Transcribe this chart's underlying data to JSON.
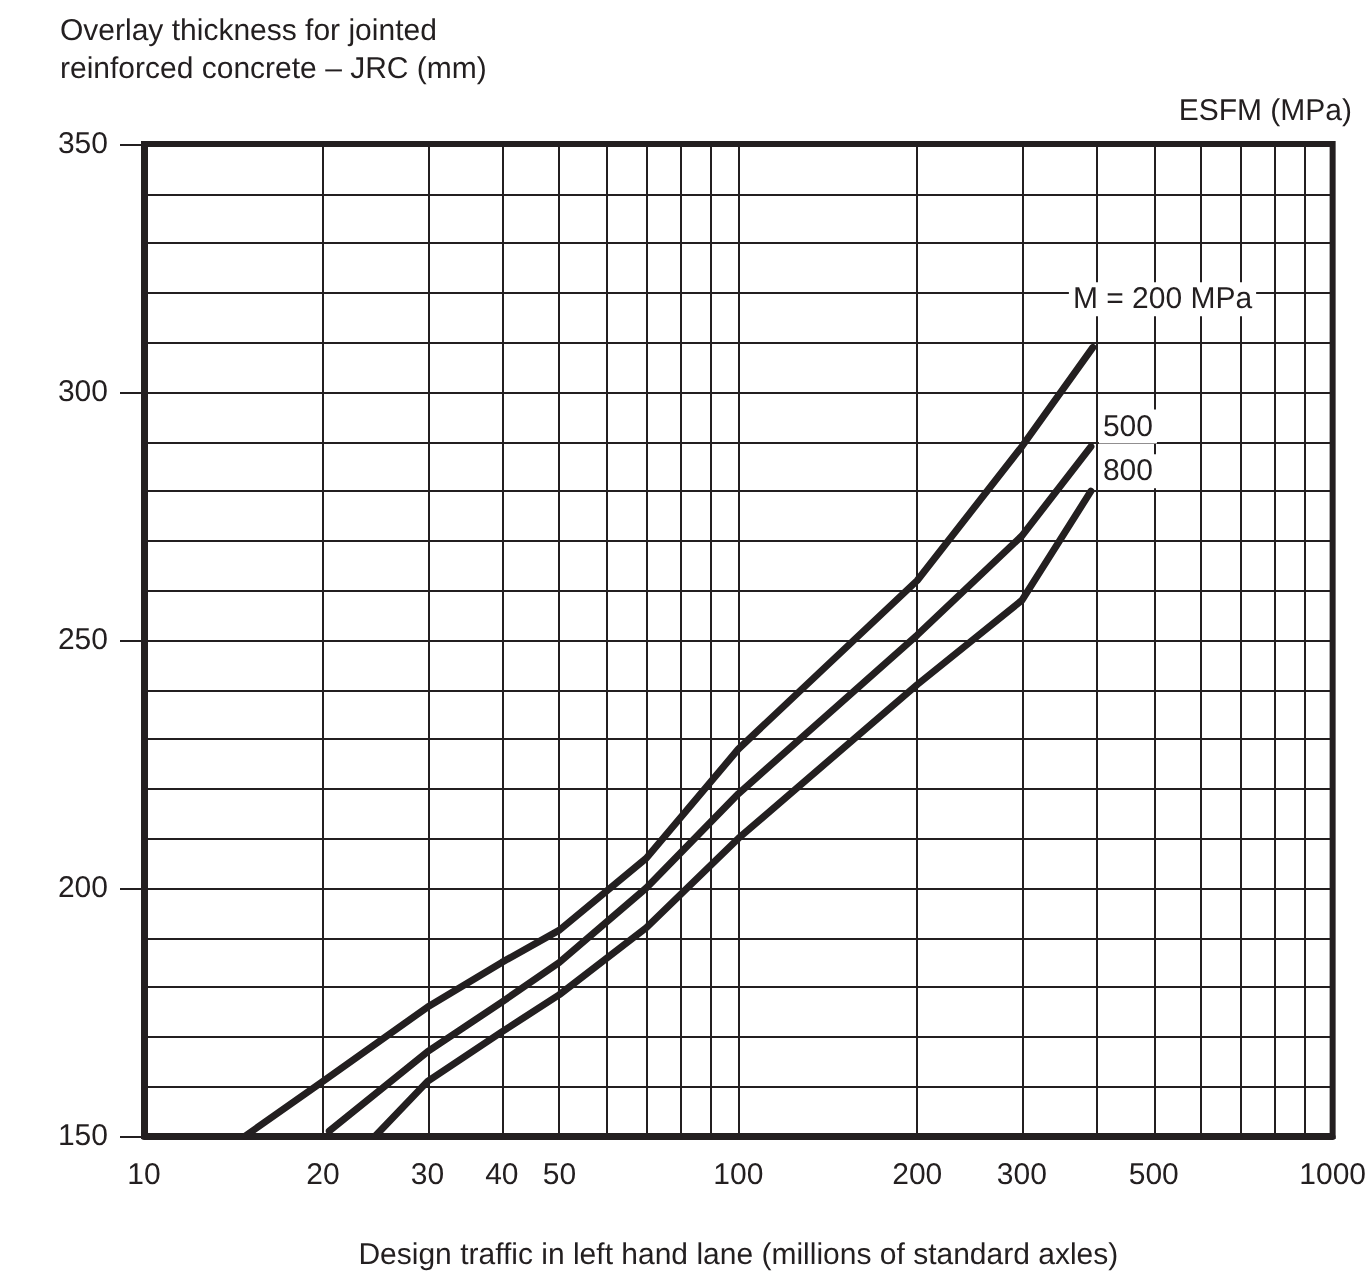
{
  "chart_data": {
    "type": "line",
    "ylabel": "Overlay thickness for jointed\nreinforced concrete – JRC (mm)",
    "xlabel": "Design traffic in left hand lane (millions of standard axles)",
    "annotations": [
      "ESFM (MPa)"
    ],
    "log": "x",
    "grid": true,
    "legend": false,
    "marker": "none",
    "line_style": "solid",
    "xlim": [
      10,
      1000
    ],
    "xticks": [
      10,
      20,
      30,
      40,
      50,
      {
        "value": 60,
        "label": null
      },
      {
        "value": 70,
        "label": null
      },
      {
        "value": 80,
        "label": null
      },
      {
        "value": 90,
        "label": null
      },
      100,
      200,
      300,
      {
        "value": 400,
        "label": null
      },
      500,
      {
        "value": 600,
        "label": null
      },
      {
        "value": 700,
        "label": null
      },
      {
        "value": 800,
        "label": null
      },
      {
        "value": 900,
        "label": null
      },
      1000
    ],
    "ylim": [
      150,
      350
    ],
    "yticks": [
      150,
      {
        "value": 160,
        "label": null
      },
      {
        "value": 170,
        "label": null
      },
      {
        "value": 180,
        "label": null
      },
      {
        "value": 190,
        "label": null
      },
      200,
      {
        "value": 210,
        "label": null
      },
      {
        "value": 220,
        "label": null
      },
      {
        "value": 230,
        "label": null
      },
      {
        "value": 240,
        "label": null
      },
      250,
      {
        "value": 260,
        "label": null
      },
      {
        "value": 270,
        "label": null
      },
      {
        "value": 280,
        "label": null
      },
      {
        "value": 290,
        "label": null
      },
      300,
      {
        "value": 310,
        "label": null
      },
      {
        "value": 320,
        "label": null
      },
      {
        "value": 330,
        "label": null
      },
      {
        "value": 340,
        "label": null
      },
      350
    ],
    "series": [
      {
        "name": "M = 200 MPa",
        "color": "#231f20",
        "x": [
          14.8,
          20,
          30,
          40,
          50,
          70,
          100,
          200,
          300,
          395
        ],
        "values": [
          150,
          161,
          176,
          185,
          191.5,
          206,
          228,
          262,
          289,
          309
        ]
      },
      {
        "name": "500",
        "color": "#231f20",
        "x": [
          20.5,
          30,
          40,
          50,
          70,
          100,
          200,
          300,
          392
        ],
        "values": [
          151,
          167,
          177,
          185,
          200,
          219,
          251,
          271,
          289
        ]
      },
      {
        "name": "800",
        "color": "#231f20",
        "x": [
          24.5,
          30,
          40,
          50,
          70,
          100,
          200,
          300,
          392
        ],
        "values": [
          150,
          161,
          171,
          178.5,
          192,
          210,
          241,
          258,
          280
        ]
      }
    ]
  }
}
